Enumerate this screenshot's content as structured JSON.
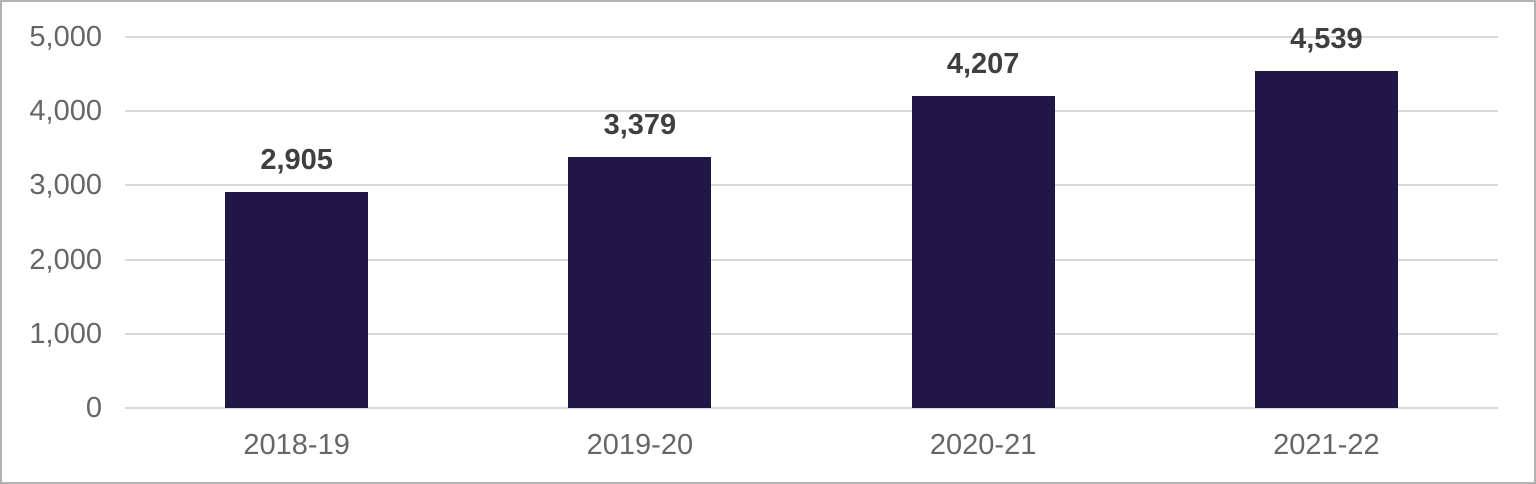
{
  "chart_data": {
    "type": "bar",
    "title": "",
    "categories": [
      "2018-19",
      "2019-20",
      "2020-21",
      "2021-22"
    ],
    "values": [
      2905,
      3379,
      4207,
      4539
    ],
    "data_labels": [
      "2,905",
      "3,379",
      "4,207",
      "4,539"
    ],
    "ylim": [
      0,
      5000
    ],
    "yticks": [
      0,
      1000,
      2000,
      3000,
      4000,
      5000
    ],
    "ytick_labels": [
      "0",
      "1,000",
      "2,000",
      "3,000",
      "4,000",
      "5,000"
    ],
    "xlabel": "",
    "ylabel": "",
    "grid": "horizontal",
    "legend": "none",
    "colors": {
      "bar": "#211747",
      "gridline": "#d9d9d9",
      "axis_label": "#666666",
      "data_label": "#3f3f3f",
      "frame_border": "#b2b2b2",
      "background": "#ffffff"
    }
  }
}
